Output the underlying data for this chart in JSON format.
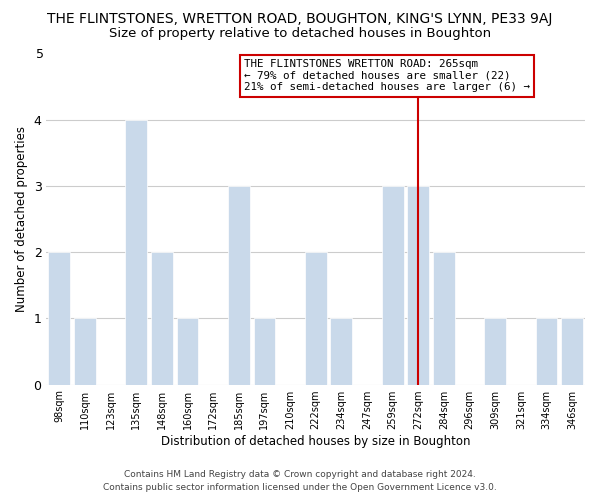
{
  "title": "THE FLINTSTONES, WRETTON ROAD, BOUGHTON, KING'S LYNN, PE33 9AJ",
  "subtitle": "Size of property relative to detached houses in Boughton",
  "xlabel": "Distribution of detached houses by size in Boughton",
  "ylabel": "Number of detached properties",
  "bar_labels": [
    "98sqm",
    "110sqm",
    "123sqm",
    "135sqm",
    "148sqm",
    "160sqm",
    "172sqm",
    "185sqm",
    "197sqm",
    "210sqm",
    "222sqm",
    "234sqm",
    "247sqm",
    "259sqm",
    "272sqm",
    "284sqm",
    "296sqm",
    "309sqm",
    "321sqm",
    "334sqm",
    "346sqm"
  ],
  "bar_values": [
    2,
    1,
    0,
    4,
    2,
    1,
    0,
    3,
    1,
    0,
    2,
    1,
    0,
    3,
    3,
    2,
    0,
    1,
    0,
    1,
    1
  ],
  "bar_color": "#c9d9ea",
  "reference_line_x_label": "272sqm",
  "reference_line_color": "#cc0000",
  "annotation_text": "THE FLINTSTONES WRETTON ROAD: 265sqm\n← 79% of detached houses are smaller (22)\n21% of semi-detached houses are larger (6) →",
  "annotation_box_color": "#ffffff",
  "annotation_box_edge_color": "#cc0000",
  "ylim": [
    0,
    5
  ],
  "yticks": [
    0,
    1,
    2,
    3,
    4
  ],
  "footer": "Contains HM Land Registry data © Crown copyright and database right 2024.\nContains public sector information licensed under the Open Government Licence v3.0.",
  "bg_color": "#ffffff",
  "grid_color": "#cccccc",
  "title_fontsize": 10,
  "subtitle_fontsize": 9.5
}
